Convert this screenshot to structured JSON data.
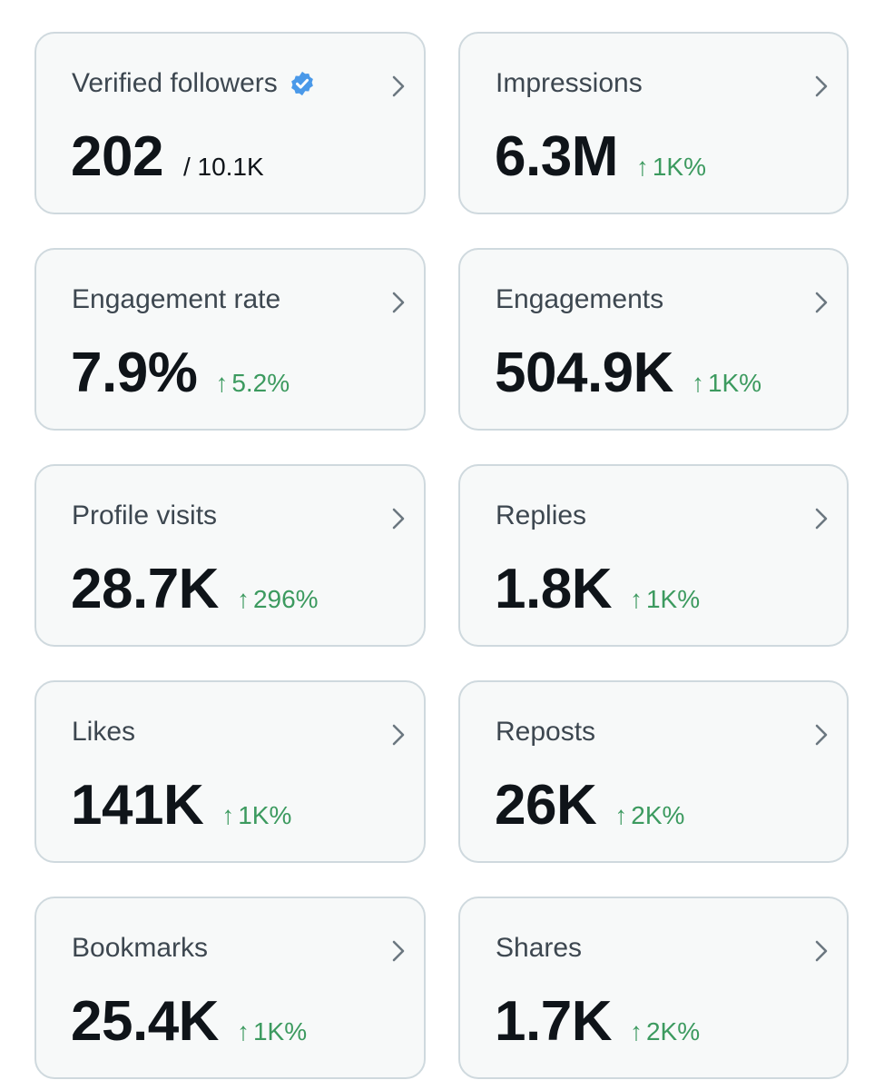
{
  "colors": {
    "card_background": "#f7f9f9",
    "card_border": "#cfd9de",
    "title_text": "#3d4750",
    "value_text": "#0f1419",
    "positive_change": "#3c9a5f",
    "verified_badge": "#4a99e9"
  },
  "cards": [
    {
      "title": "Verified followers",
      "value": "202",
      "subvalue": "/ 10.1K",
      "badge": "verified-icon"
    },
    {
      "title": "Impressions",
      "value": "6.3M",
      "change": "1K%"
    },
    {
      "title": "Engagement rate",
      "value": "7.9%",
      "change": "5.2%"
    },
    {
      "title": "Engagements",
      "value": "504.9K",
      "change": "1K%"
    },
    {
      "title": "Profile visits",
      "value": "28.7K",
      "change": "296%"
    },
    {
      "title": "Replies",
      "value": "1.8K",
      "change": "1K%"
    },
    {
      "title": "Likes",
      "value": "141K",
      "change": "1K%"
    },
    {
      "title": "Reposts",
      "value": "26K",
      "change": "2K%"
    },
    {
      "title": "Bookmarks",
      "value": "25.4K",
      "change": "1K%"
    },
    {
      "title": "Shares",
      "value": "1.7K",
      "change": "2K%"
    }
  ],
  "change_arrow": "↑"
}
